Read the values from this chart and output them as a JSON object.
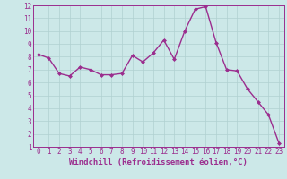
{
  "x": [
    0,
    1,
    2,
    3,
    4,
    5,
    6,
    7,
    8,
    9,
    10,
    11,
    12,
    13,
    14,
    15,
    16,
    17,
    18,
    19,
    20,
    21,
    22,
    23
  ],
  "y": [
    8.2,
    7.9,
    6.7,
    6.5,
    7.2,
    7.0,
    6.6,
    6.6,
    6.7,
    8.1,
    7.6,
    8.3,
    9.3,
    7.8,
    10.0,
    11.7,
    11.9,
    9.1,
    7.0,
    6.9,
    5.5,
    4.5,
    3.5,
    1.3
  ],
  "xlim": [
    -0.5,
    23.5
  ],
  "ylim": [
    1,
    12
  ],
  "xticks": [
    0,
    1,
    2,
    3,
    4,
    5,
    6,
    7,
    8,
    9,
    10,
    11,
    12,
    13,
    14,
    15,
    16,
    17,
    18,
    19,
    20,
    21,
    22,
    23
  ],
  "yticks": [
    1,
    2,
    3,
    4,
    5,
    6,
    7,
    8,
    9,
    10,
    11,
    12
  ],
  "xlabel": "Windchill (Refroidissement éolien,°C)",
  "line_color": "#9b2d8e",
  "bg_color": "#cce8e8",
  "grid_color": "#b0d0d0",
  "marker": "D",
  "marker_size": 2.0,
  "line_width": 1.0,
  "tick_label_fontsize": 5.5,
  "xlabel_fontsize": 6.5,
  "fig_width": 3.2,
  "fig_height": 2.0,
  "dpi": 100
}
